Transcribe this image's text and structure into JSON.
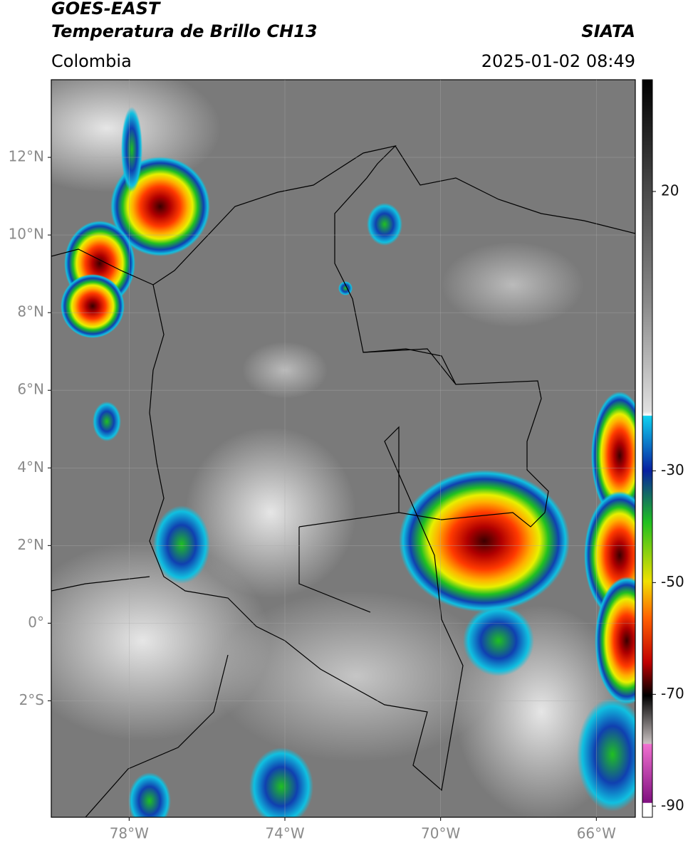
{
  "header": {
    "title": "GOES-EAST",
    "subtitle": "Temperatura de Brillo CH13",
    "source": "SIATA",
    "region": "Colombia",
    "datetime": "2025-01-02 08:49"
  },
  "map": {
    "xlim": [
      -80,
      -65
    ],
    "ylim": [
      -5,
      14
    ],
    "grid": true,
    "xticks": [
      {
        "value": -78,
        "label": "78°W"
      },
      {
        "value": -74,
        "label": "74°W"
      },
      {
        "value": -70,
        "label": "70°W"
      },
      {
        "value": -66,
        "label": "66°W"
      }
    ],
    "yticks": [
      {
        "value": 12,
        "label": "12°N"
      },
      {
        "value": 10,
        "label": "10°N"
      },
      {
        "value": 8,
        "label": "8°N"
      },
      {
        "value": 6,
        "label": "6°N"
      },
      {
        "value": 4,
        "label": "4°N"
      },
      {
        "value": 2,
        "label": "2°N"
      },
      {
        "value": 0,
        "label": "0°"
      },
      {
        "value": -2,
        "label": "2°S"
      }
    ]
  },
  "colorbar": {
    "lim": [
      -92,
      40
    ],
    "ticks": [
      20,
      -30,
      -50,
      -70,
      -90
    ]
  }
}
